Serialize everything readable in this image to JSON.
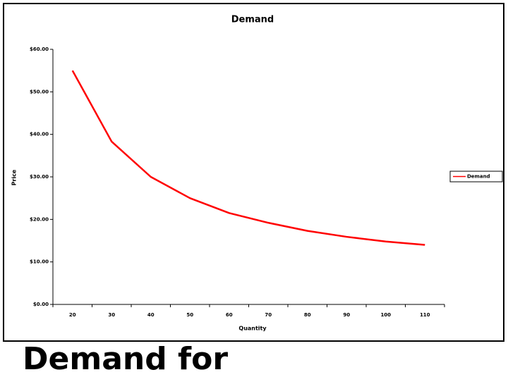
{
  "chart_data": {
    "type": "line",
    "title": "Demand",
    "x_label": "Quantity",
    "y_label": "Price",
    "categories": [
      "20",
      "30",
      "40",
      "50",
      "60",
      "70",
      "80",
      "90",
      "100",
      "110"
    ],
    "series": [
      {
        "name": "Demand",
        "color": "#ff0000",
        "values": [
          55,
          38.3,
          30,
          25,
          21.5,
          19.2,
          17.3,
          15.9,
          14.8,
          14
        ]
      }
    ],
    "ylim": [
      0,
      60
    ],
    "yticks": [
      {
        "value": 0,
        "label": "$0.00"
      },
      {
        "value": 10,
        "label": "$10.00"
      },
      {
        "value": 20,
        "label": "$20.00"
      },
      {
        "value": 30,
        "label": "$30.00"
      },
      {
        "value": 40,
        "label": "$40.00"
      },
      {
        "value": 50,
        "label": "$50.00"
      },
      {
        "value": 60,
        "label": "$60.00"
      }
    ],
    "legend": "right"
  },
  "caption": "Demand for"
}
